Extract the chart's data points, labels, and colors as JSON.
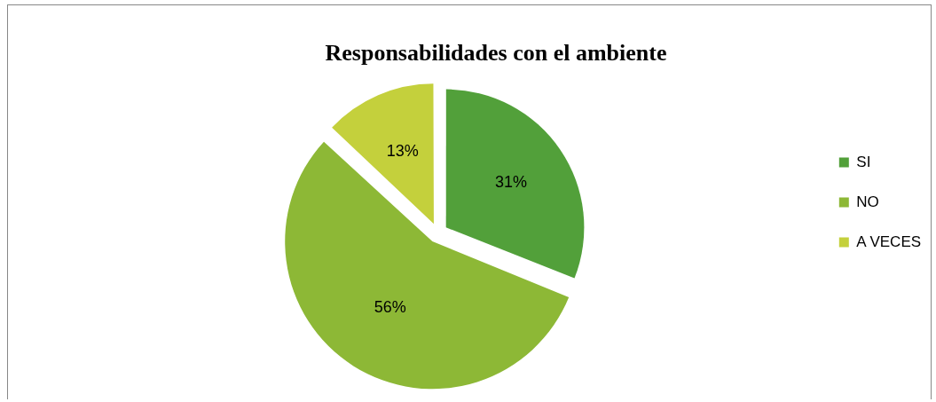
{
  "chart_data": {
    "type": "pie",
    "title": "Responsabilidades con el ambiente",
    "categories": [
      "SI",
      "NO",
      "A VECES"
    ],
    "values": [
      31,
      56,
      13
    ],
    "colors": [
      "#52a03a",
      "#8db836",
      "#c4d03c"
    ],
    "value_labels": [
      "31%",
      "56%",
      "13%"
    ],
    "legend": "right"
  }
}
